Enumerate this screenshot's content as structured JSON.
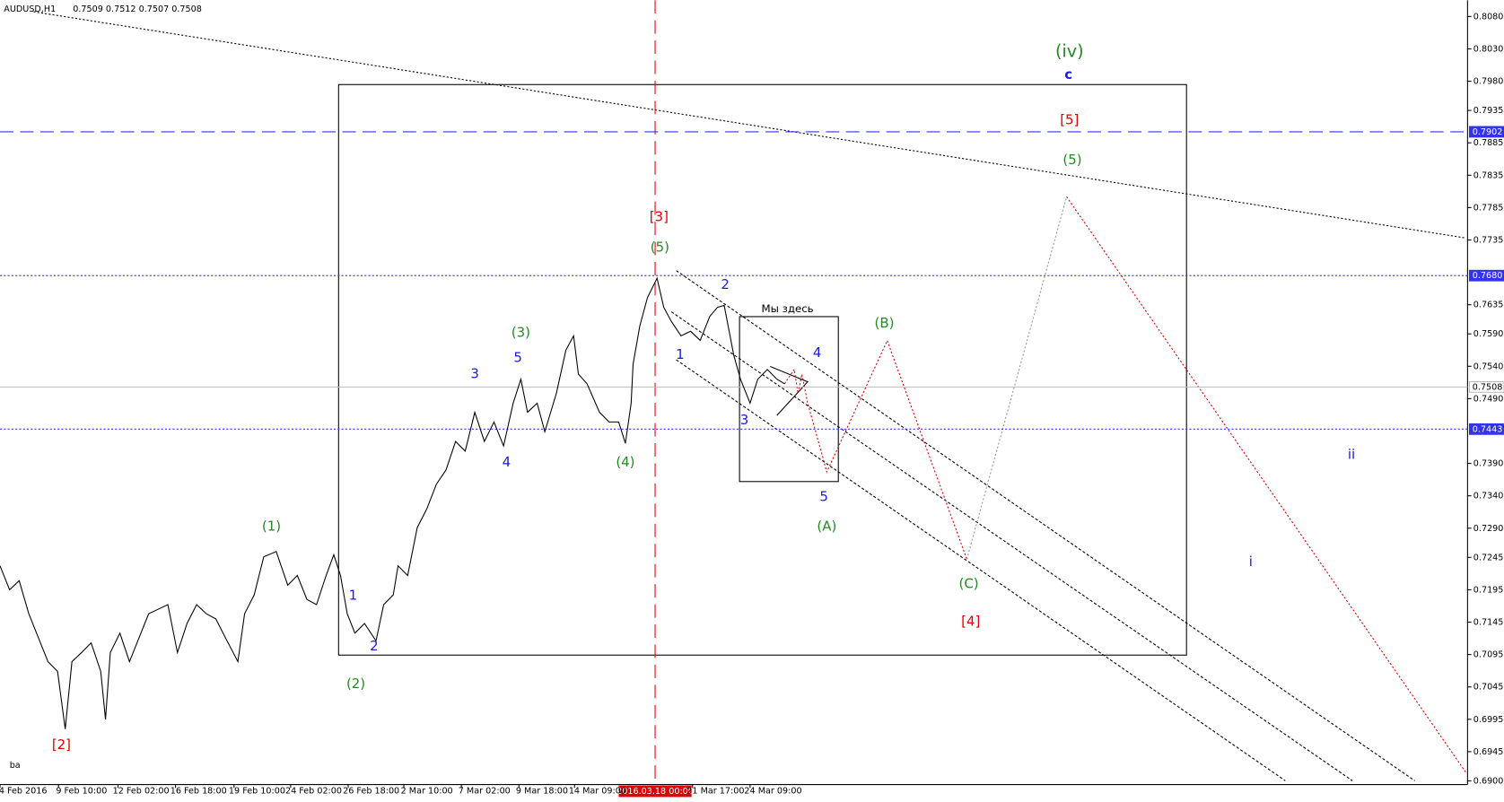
{
  "chart_data": {
    "type": "line",
    "symbol": "AUDUSD,H1",
    "quote": "0.7509 0.7512 0.7507 0.7508",
    "corner_label": "ba",
    "cursor_label": "2016.03.18 00:00",
    "box_label": "Мы здесь",
    "xlim": [
      0,
      1530
    ],
    "ylim": [
      0.6895,
      0.81
    ],
    "xticks": [
      {
        "value": 24,
        "label": "4 Feb 2016"
      },
      {
        "value": 85,
        "label": "9 Feb 10:00"
      },
      {
        "value": 147,
        "label": "12 Feb 02:00"
      },
      {
        "value": 207,
        "label": "16 Feb 18:00"
      },
      {
        "value": 268,
        "label": "19 Feb 10:00"
      },
      {
        "value": 327,
        "label": "24 Feb 02:00"
      },
      {
        "value": 387,
        "label": "26 Feb 18:00"
      },
      {
        "value": 445,
        "label": "2 Mar 10:00"
      },
      {
        "value": 505,
        "label": "7 Mar 02:00"
      },
      {
        "value": 565,
        "label": "9 Mar 18:00"
      },
      {
        "value": 623,
        "label": "14 Mar 09:00"
      },
      {
        "value": 746,
        "label": "21 Mar 17:00"
      },
      {
        "value": 806,
        "label": "24 Mar 09:00"
      }
    ],
    "yticks": [
      {
        "value": 0.808,
        "label": "0.8080"
      },
      {
        "value": 0.803,
        "label": "0.8030"
      },
      {
        "value": 0.798,
        "label": "0.7980"
      },
      {
        "value": 0.7935,
        "label": "0.7935"
      },
      {
        "value": 0.7885,
        "label": "0.7885"
      },
      {
        "value": 0.7835,
        "label": "0.7835"
      },
      {
        "value": 0.7785,
        "label": "0.7785"
      },
      {
        "value": 0.7735,
        "label": "0.7735"
      },
      {
        "value": 0.7635,
        "label": "0.7635"
      },
      {
        "value": 0.759,
        "label": "0.7590"
      },
      {
        "value": 0.754,
        "label": "0.7540"
      },
      {
        "value": 0.749,
        "label": "0.7490"
      },
      {
        "value": 0.739,
        "label": "0.7390"
      },
      {
        "value": 0.734,
        "label": "0.7340"
      },
      {
        "value": 0.729,
        "label": "0.7290"
      },
      {
        "value": 0.7245,
        "label": "0.7245"
      },
      {
        "value": 0.7195,
        "label": "0.7195"
      },
      {
        "value": 0.7145,
        "label": "0.7145"
      },
      {
        "value": 0.7095,
        "label": "0.7095"
      },
      {
        "value": 0.7045,
        "label": "0.7045"
      },
      {
        "value": 0.6995,
        "label": "0.6995"
      },
      {
        "value": 0.6945,
        "label": "0.6945"
      },
      {
        "value": 0.69,
        "label": "0.6900"
      }
    ],
    "hlines": [
      {
        "value": 0.7902,
        "label": "0.7902",
        "color": "#3333ee",
        "dash": "14 7",
        "box": "#3333ee"
      },
      {
        "value": 0.768,
        "label": "0.7680",
        "color": "#3333ee",
        "dash": "2 2",
        "box": "#3333ee"
      },
      {
        "value": 0.7508,
        "label": "0.7508",
        "color": "#bbbbbb",
        "dash": "",
        "box": "#ffffff"
      },
      {
        "value": 0.7443,
        "label": "0.7443",
        "color": "#3333ee",
        "dash": "2 2",
        "box": "#3333ee"
      }
    ],
    "series": [
      {
        "name": "AUDUSD",
        "color": "#000000",
        "x": [
          0,
          10,
          20,
          30,
          40,
          50,
          60,
          68,
          75,
          85,
          95,
          105,
          110,
          115,
          125,
          135,
          145,
          155,
          165,
          175,
          185,
          195,
          205,
          215,
          225,
          235,
          248,
          255,
          265,
          275,
          288,
          300,
          310,
          320,
          330,
          340,
          348,
          355,
          362,
          370,
          380,
          392,
          400,
          410,
          415,
          425,
          435,
          445,
          455,
          465,
          475,
          485,
          495,
          505,
          515,
          525,
          535,
          543,
          550,
          560,
          568,
          580,
          590,
          598,
          603,
          612,
          625,
          635,
          645,
          652,
          658,
          660,
          667,
          675,
          685,
          692,
          700,
          710,
          720,
          730,
          740,
          748,
          755,
          765,
          772,
          782,
          790,
          800,
          810,
          818
        ],
        "values": [
          0.7232,
          0.7195,
          0.7209,
          0.7158,
          0.7121,
          0.7084,
          0.7069,
          0.698,
          0.7084,
          0.7098,
          0.7113,
          0.7069,
          0.6995,
          0.7098,
          0.7128,
          0.7084,
          0.7121,
          0.7158,
          0.7165,
          0.7172,
          0.7098,
          0.7143,
          0.7172,
          0.7158,
          0.715,
          0.7121,
          0.7084,
          0.7158,
          0.7187,
          0.7246,
          0.7254,
          0.7202,
          0.7217,
          0.718,
          0.7172,
          0.7217,
          0.7249,
          0.7217,
          0.7158,
          0.7128,
          0.7143,
          0.7116,
          0.7172,
          0.7187,
          0.7232,
          0.7217,
          0.7291,
          0.732,
          0.7358,
          0.738,
          0.7424,
          0.7409,
          0.7469,
          0.7424,
          0.7454,
          0.7417,
          0.7483,
          0.752,
          0.7469,
          0.7483,
          0.7439,
          0.7498,
          0.7565,
          0.7587,
          0.7528,
          0.7513,
          0.7469,
          0.7454,
          0.7454,
          0.7421,
          0.7483,
          0.7543,
          0.7602,
          0.7646,
          0.7676,
          0.7631,
          0.7609,
          0.7587,
          0.7594,
          0.758,
          0.7617,
          0.7631,
          0.7634,
          0.7557,
          0.752,
          0.7483,
          0.752,
          0.7535,
          0.752,
          0.7513
        ]
      }
    ],
    "annotations": [
      "[2]",
      "(1)",
      "(2)",
      "1",
      "2",
      "3",
      "4",
      "5",
      "(3)",
      "(4)",
      "(5)",
      "[3]",
      "2",
      "1",
      "3",
      "4",
      "5",
      "(A)",
      "(B)",
      "(C)",
      "[4]",
      "(5)",
      "[5]",
      "c",
      "(iv)",
      "i",
      "ii"
    ]
  }
}
